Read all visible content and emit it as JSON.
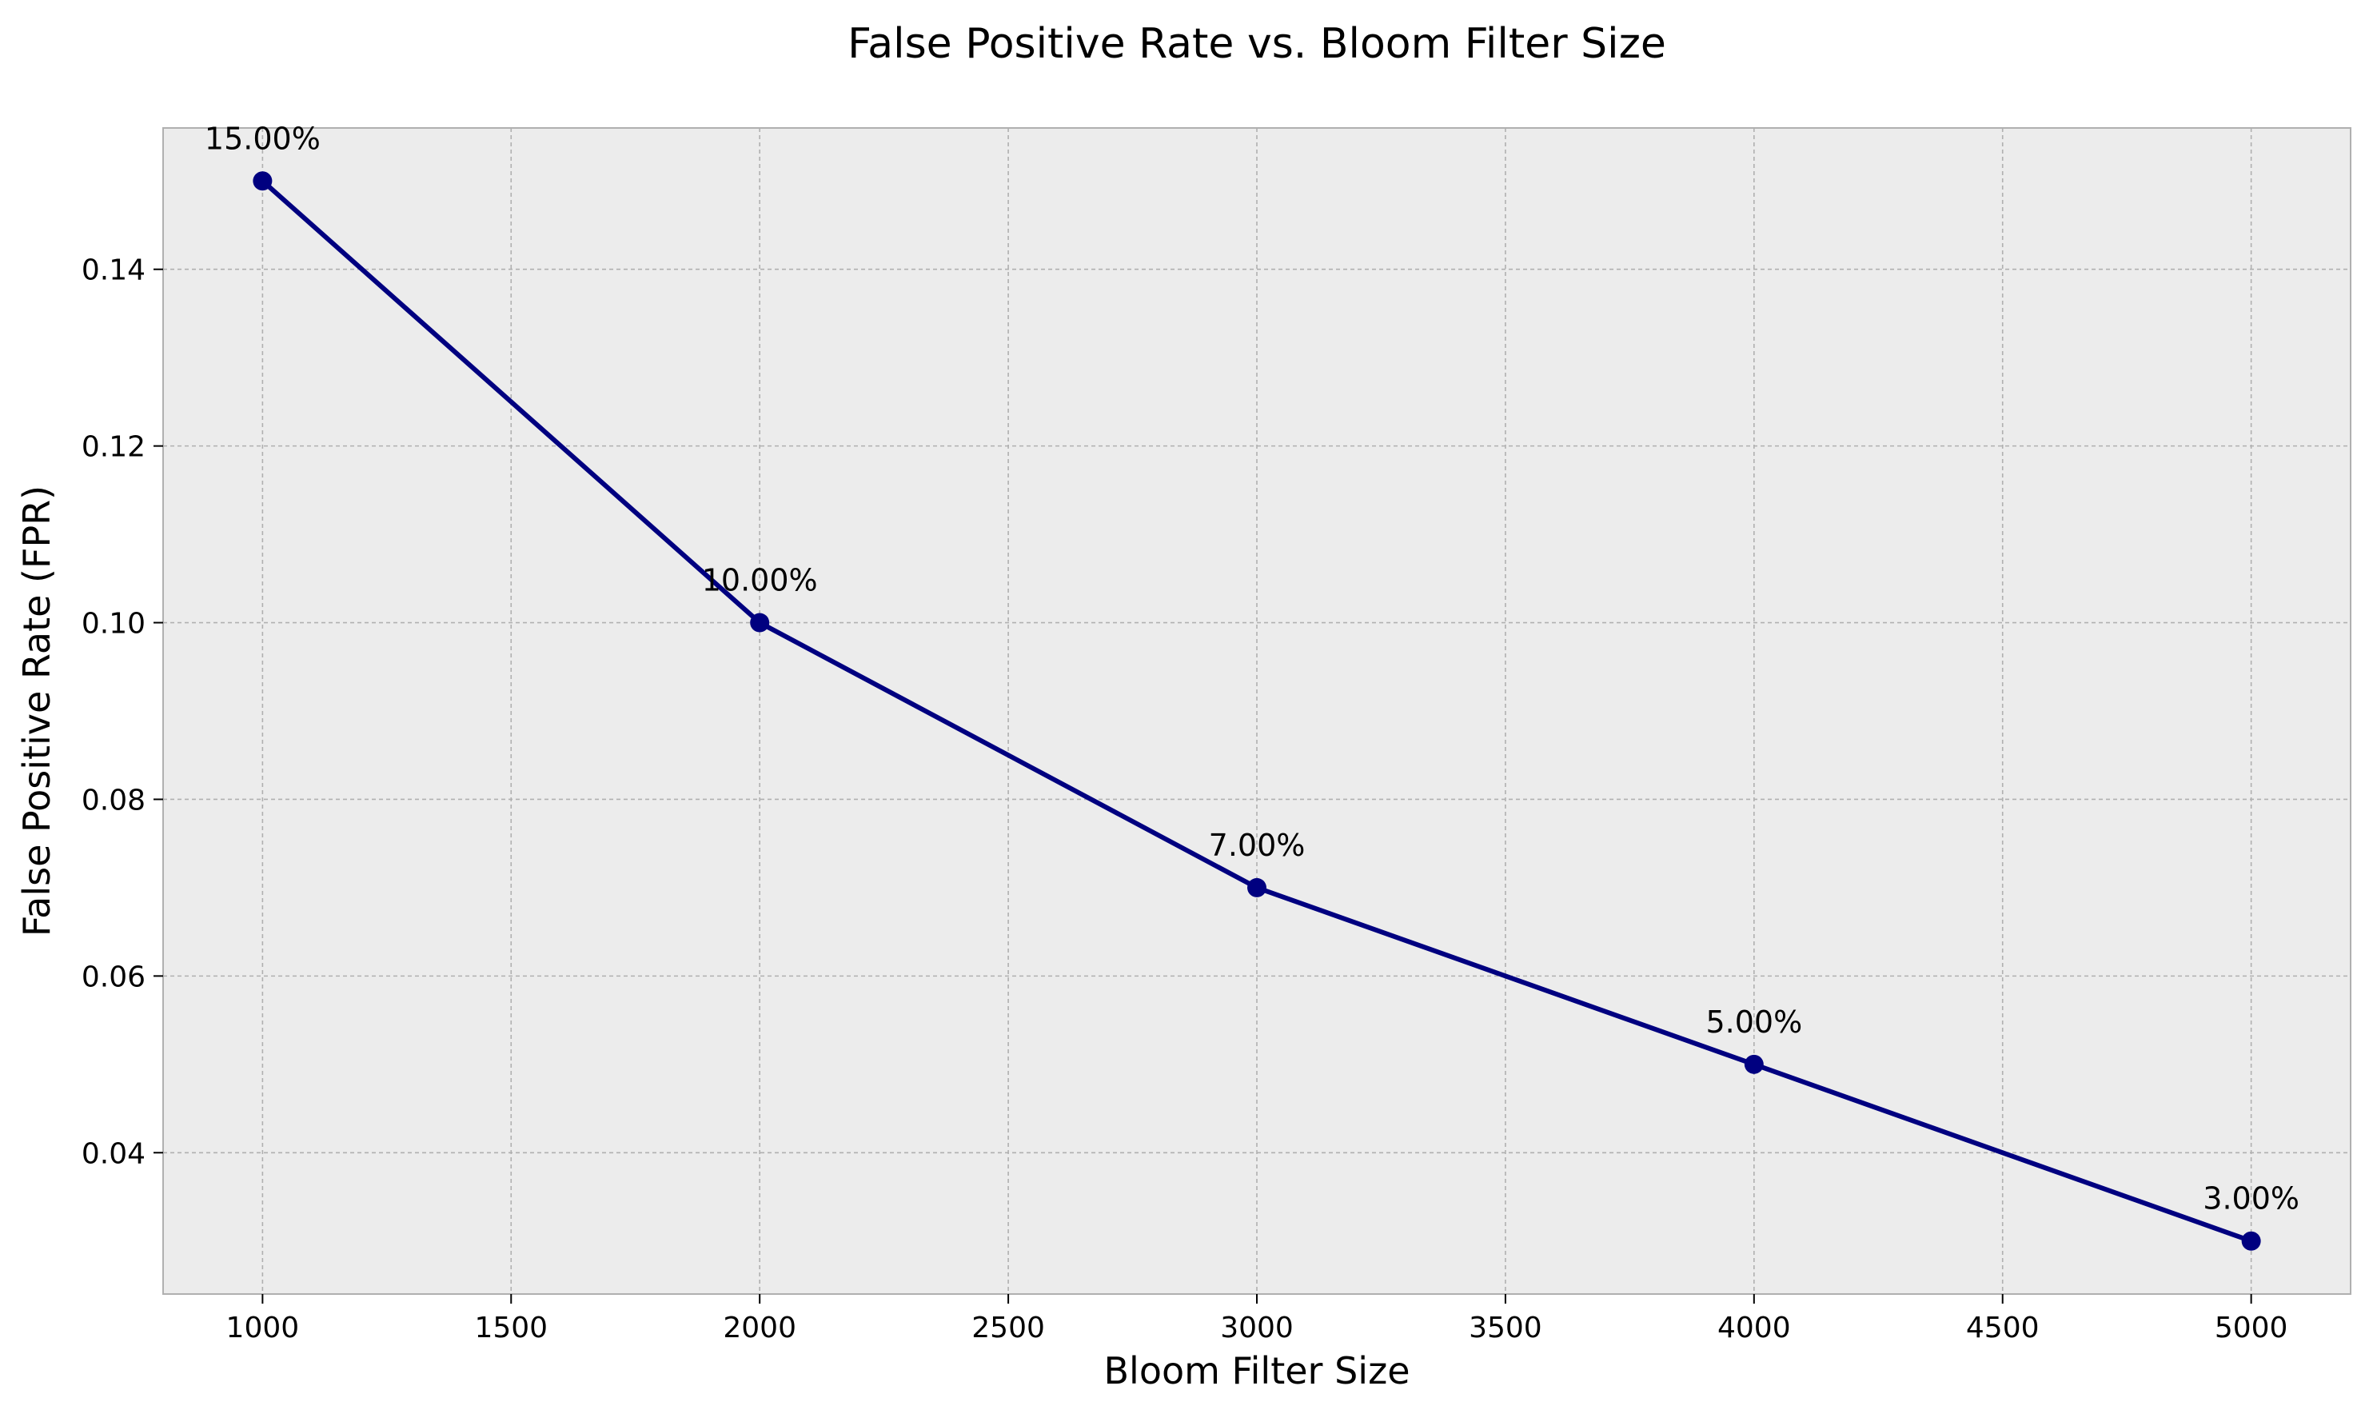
{
  "chart_data": {
    "type": "line",
    "title": "False Positive Rate vs. Bloom Filter Size",
    "xlabel": "Bloom Filter Size",
    "ylabel": "False Positive Rate (FPR)",
    "x": [
      1000,
      2000,
      3000,
      4000,
      5000
    ],
    "values": [
      0.15,
      0.1,
      0.07,
      0.05,
      0.03
    ],
    "data_labels": [
      "15.00%",
      "10.00%",
      "7.00%",
      "5.00%",
      "3.00%"
    ],
    "xlim": [
      800,
      5200
    ],
    "ylim": [
      0.024,
      0.156
    ],
    "xticks": [
      1000,
      1500,
      2000,
      2500,
      3000,
      3500,
      4000,
      4500,
      5000
    ],
    "xtick_labels": [
      "1000",
      "1500",
      "2000",
      "2500",
      "3000",
      "3500",
      "4000",
      "4500",
      "5000"
    ],
    "yticks": [
      0.04,
      0.06,
      0.08,
      0.1,
      0.12,
      0.14
    ],
    "ytick_labels": [
      "0.04",
      "0.06",
      "0.08",
      "0.10",
      "0.12",
      "0.14"
    ],
    "grid": true,
    "colors": {
      "line": "#000080",
      "plot_background": "#ececec",
      "grid": "#b0b0b0",
      "frame": "#b0b0b0"
    }
  }
}
